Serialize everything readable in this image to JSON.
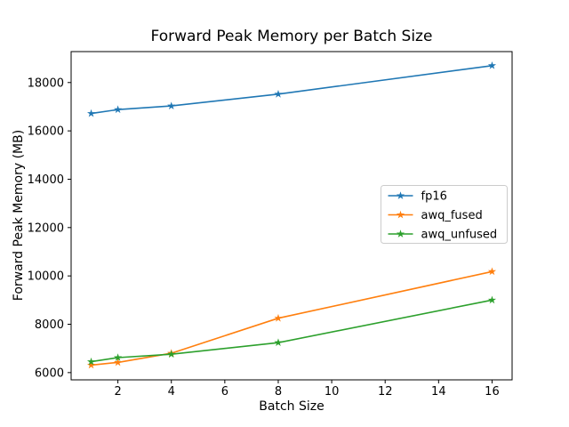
{
  "chart_data": {
    "type": "line",
    "title": "Forward Peak Memory per Batch Size",
    "xlabel": "Batch Size",
    "ylabel": "Forward Peak Memory (MB)",
    "x": [
      1,
      2,
      4,
      8,
      16
    ],
    "series": [
      {
        "name": "fp16",
        "color": "#1f77b4",
        "values": [
          16720,
          16880,
          17030,
          17520,
          18700
        ]
      },
      {
        "name": "awq_fused",
        "color": "#ff7f0e",
        "values": [
          6310,
          6420,
          6800,
          8250,
          10180
        ]
      },
      {
        "name": "awq_unfused",
        "color": "#2ca02c",
        "values": [
          6450,
          6620,
          6760,
          7240,
          9000
        ]
      }
    ],
    "marker": "star",
    "xticks": [
      2,
      4,
      6,
      8,
      10,
      12,
      14,
      16
    ],
    "yticks": [
      6000,
      8000,
      10000,
      12000,
      14000,
      16000,
      18000
    ],
    "xlim": [
      0.25,
      16.75
    ],
    "ylim": [
      5700,
      19280
    ],
    "grid": false,
    "legend_position": "center-right",
    "colors": {
      "axis": "#000000",
      "legend_border": "#cccccc",
      "background": "#ffffff"
    }
  }
}
